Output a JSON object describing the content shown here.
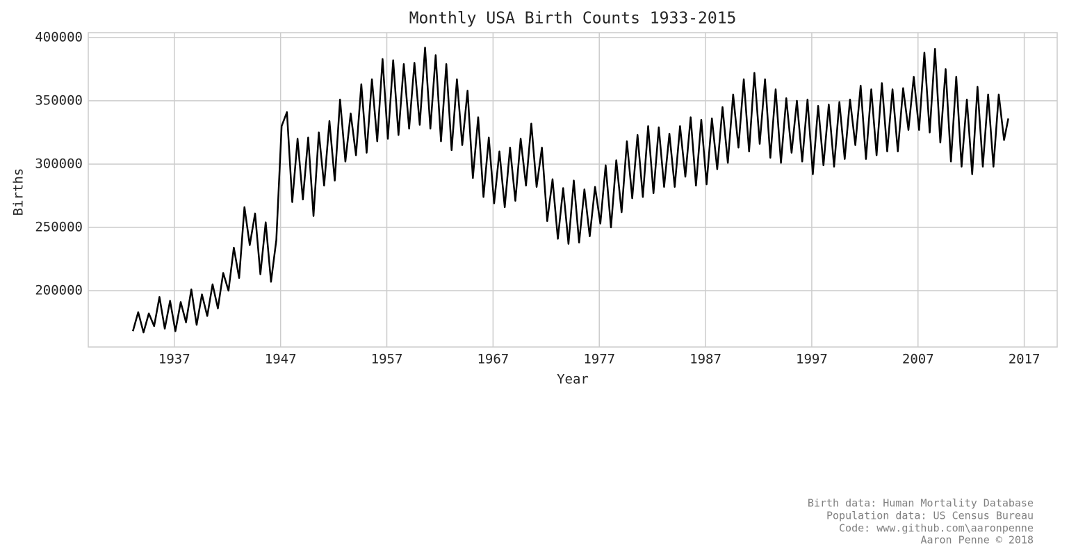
{
  "chart_data": {
    "type": "line",
    "title": "Monthly USA Birth Counts 1933-2015",
    "xlabel": "Year",
    "ylabel": "Births",
    "credits": [
      "Birth data: Human Mortality Database",
      "Population data: US Census Bureau",
      "Code: www.github.com\\aaronpenne",
      "Aaron Penne © 2018"
    ],
    "color": "#000000",
    "grid": true,
    "xlim": [
      1928.9,
      2020.1
    ],
    "xticks": [
      1937,
      1947,
      1957,
      1967,
      1977,
      1987,
      1997,
      2007,
      2017
    ],
    "ylim": [
      155500,
      403800
    ],
    "yticks": [
      200000,
      250000,
      300000,
      350000,
      400000
    ],
    "x": [
      1933.1,
      1933.6,
      1934.1,
      1934.6,
      1935.1,
      1935.6,
      1936.1,
      1936.6,
      1937.1,
      1937.6,
      1938.1,
      1938.6,
      1939.1,
      1939.6,
      1940.1,
      1940.6,
      1941.1,
      1941.6,
      1942.1,
      1942.6,
      1943.1,
      1943.6,
      1944.1,
      1944.6,
      1945.1,
      1945.6,
      1946.1,
      1946.6,
      1947.1,
      1947.6,
      1948.1,
      1948.6,
      1949.1,
      1949.6,
      1950.1,
      1950.6,
      1951.1,
      1951.6,
      1952.1,
      1952.6,
      1953.1,
      1953.6,
      1954.1,
      1954.6,
      1955.1,
      1955.6,
      1956.1,
      1956.6,
      1957.1,
      1957.6,
      1958.1,
      1958.6,
      1959.1,
      1959.6,
      1960.1,
      1960.6,
      1961.1,
      1961.6,
      1962.1,
      1962.6,
      1963.1,
      1963.6,
      1964.1,
      1964.6,
      1965.1,
      1965.6,
      1966.1,
      1966.6,
      1967.1,
      1967.6,
      1968.1,
      1968.6,
      1969.1,
      1969.6,
      1970.1,
      1970.6,
      1971.1,
      1971.6,
      1972.1,
      1972.6,
      1973.1,
      1973.6,
      1974.1,
      1974.6,
      1975.1,
      1975.6,
      1976.1,
      1976.6,
      1977.1,
      1977.6,
      1978.1,
      1978.6,
      1979.1,
      1979.6,
      1980.1,
      1980.6,
      1981.1,
      1981.6,
      1982.1,
      1982.6,
      1983.1,
      1983.6,
      1984.1,
      1984.6,
      1985.1,
      1985.6,
      1986.1,
      1986.6,
      1987.1,
      1987.6,
      1988.1,
      1988.6,
      1989.1,
      1989.6,
      1990.1,
      1990.6,
      1991.1,
      1991.6,
      1992.1,
      1992.6,
      1993.1,
      1993.6,
      1994.1,
      1994.6,
      1995.1,
      1995.6,
      1996.1,
      1996.6,
      1997.1,
      1997.6,
      1998.1,
      1998.6,
      1999.1,
      1999.6,
      2000.1,
      2000.6,
      2001.1,
      2001.6,
      2002.1,
      2002.6,
      2003.1,
      2003.6,
      2004.1,
      2004.6,
      2005.1,
      2005.6,
      2006.1,
      2006.6,
      2007.1,
      2007.6,
      2008.1,
      2008.6,
      2009.1,
      2009.6,
      2010.1,
      2010.6,
      2011.1,
      2011.6,
      2012.1,
      2012.6,
      2013.1,
      2013.6,
      2014.1,
      2014.6,
      2015.1,
      2015.5
    ],
    "values": [
      168000,
      183000,
      167000,
      182000,
      172000,
      195000,
      170000,
      192000,
      168000,
      191000,
      175000,
      201000,
      173000,
      197000,
      180000,
      205000,
      186000,
      214000,
      200000,
      234000,
      210000,
      266000,
      236000,
      261000,
      213000,
      254000,
      207000,
      240000,
      330000,
      341000,
      270000,
      320000,
      272000,
      321000,
      259000,
      325000,
      283000,
      334000,
      287000,
      351000,
      302000,
      340000,
      307000,
      363000,
      309000,
      367000,
      318000,
      383000,
      320000,
      382000,
      323000,
      379000,
      328000,
      380000,
      331000,
      392000,
      328000,
      386000,
      318000,
      379000,
      311000,
      367000,
      315000,
      358000,
      289000,
      337000,
      274000,
      321000,
      269000,
      310000,
      266000,
      313000,
      271000,
      320000,
      283000,
      332000,
      282000,
      313000,
      255000,
      288000,
      241000,
      281000,
      237000,
      287000,
      238000,
      280000,
      243000,
      282000,
      253000,
      299000,
      250000,
      303000,
      262000,
      318000,
      273000,
      323000,
      274000,
      330000,
      277000,
      329000,
      282000,
      324000,
      282000,
      330000,
      290000,
      337000,
      283000,
      335000,
      284000,
      336000,
      296000,
      345000,
      301000,
      355000,
      313000,
      367000,
      310000,
      372000,
      316000,
      367000,
      305000,
      359000,
      301000,
      352000,
      309000,
      350000,
      302000,
      351000,
      292000,
      346000,
      299000,
      347000,
      298000,
      349000,
      304000,
      351000,
      315000,
      362000,
      304000,
      359000,
      307000,
      364000,
      310000,
      359000,
      310000,
      360000,
      327000,
      369000,
      327000,
      388000,
      325000,
      391000,
      317000,
      375000,
      302000,
      369000,
      298000,
      351000,
      292000,
      361000,
      298000,
      355000,
      298000,
      355000,
      319000,
      336000
    ]
  }
}
